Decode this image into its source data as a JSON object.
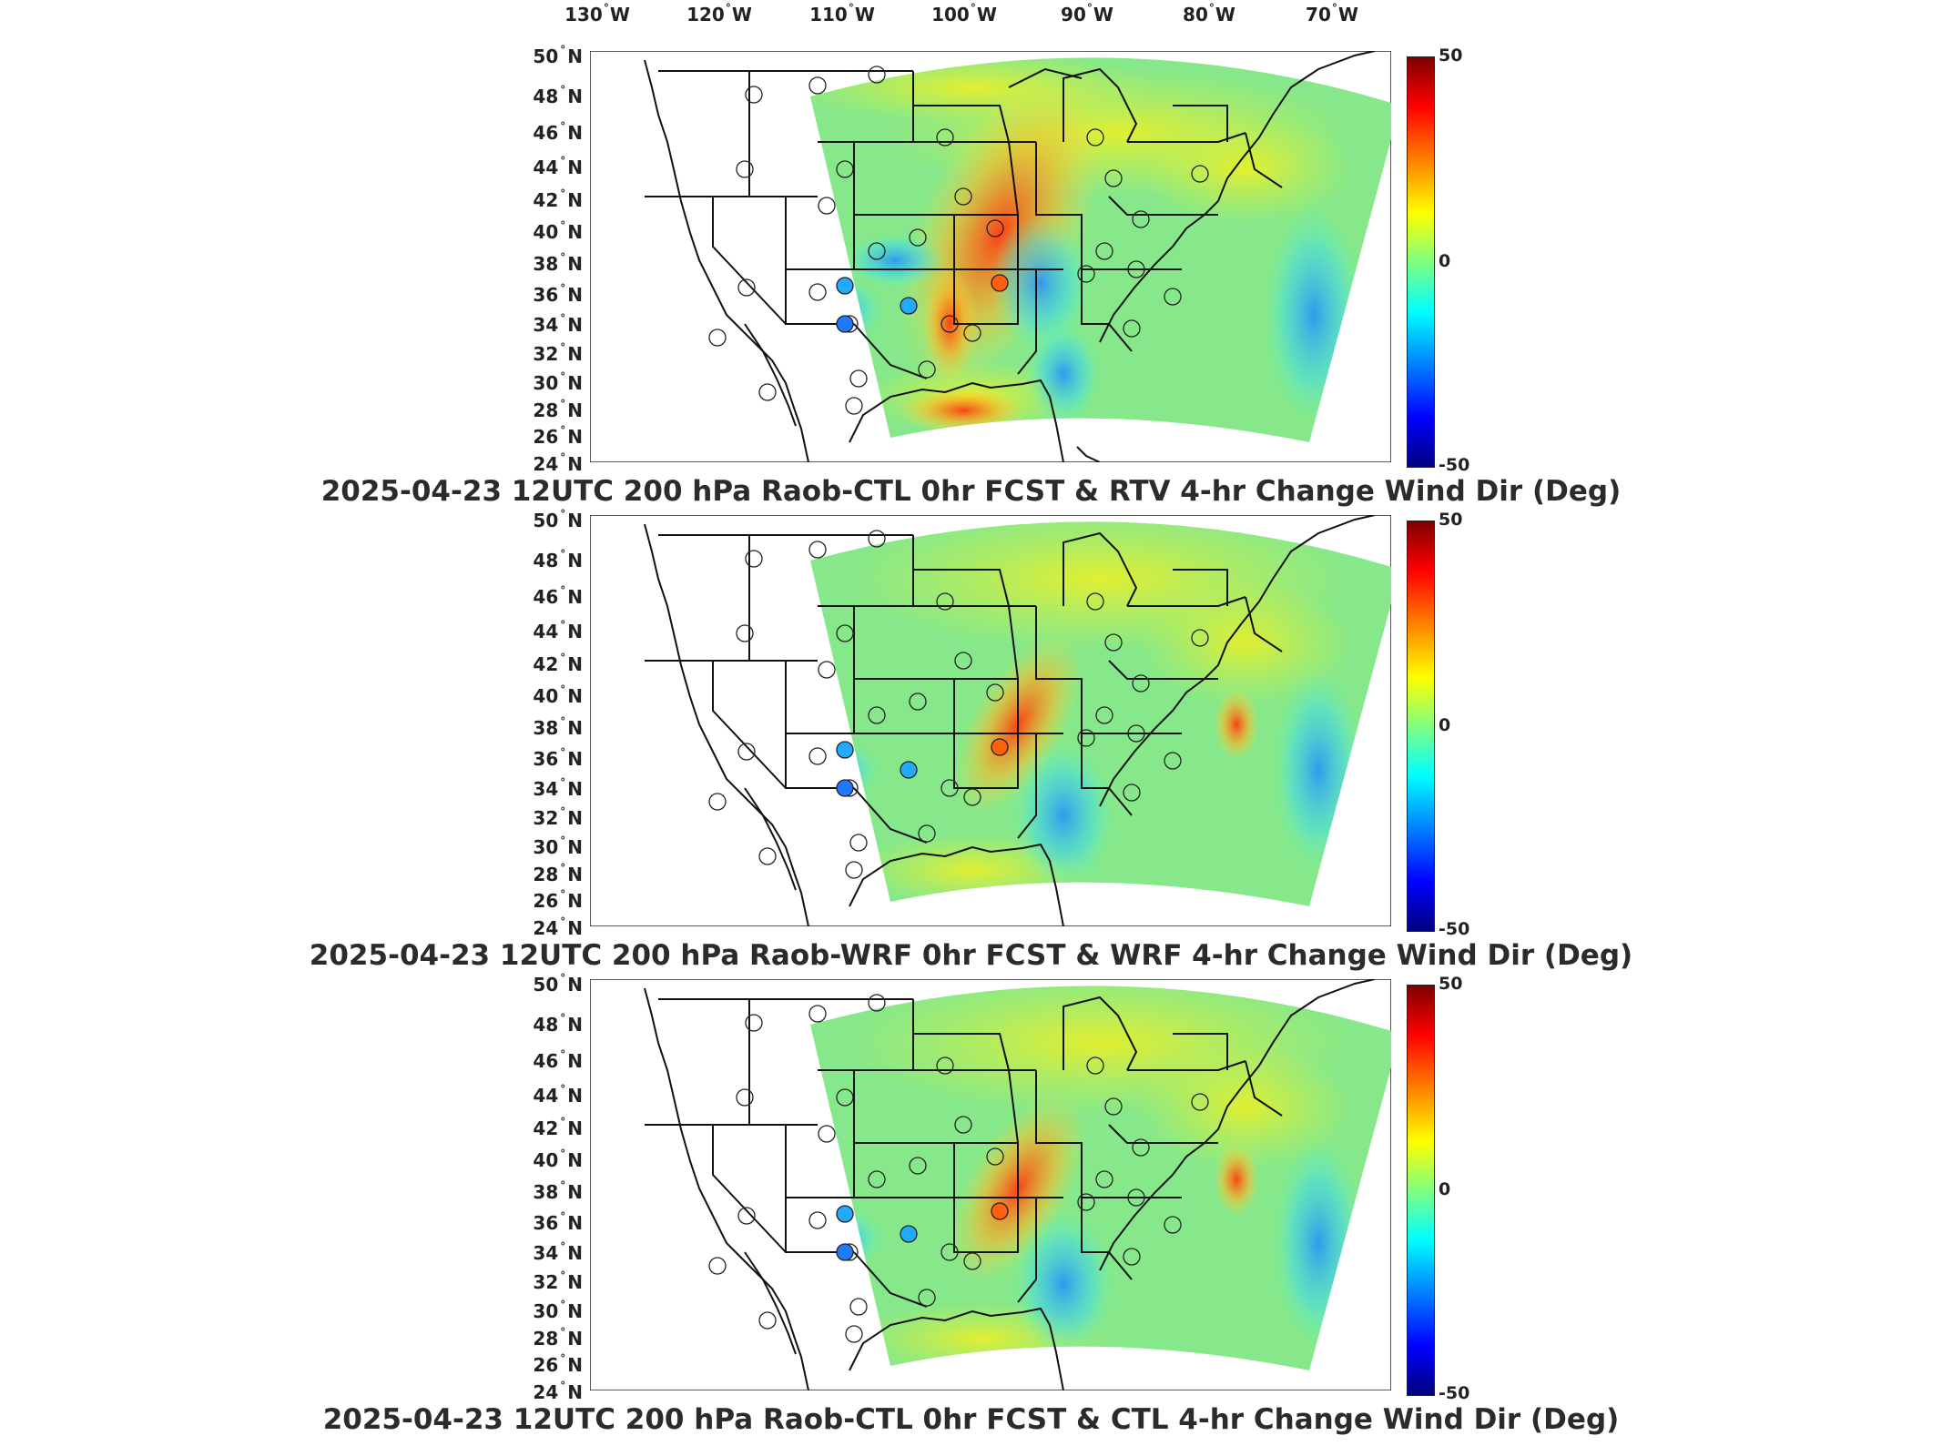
{
  "lon_labels": [
    {
      "deg": "130",
      "hem": "W"
    },
    {
      "deg": "120",
      "hem": "W"
    },
    {
      "deg": "110",
      "hem": "W"
    },
    {
      "deg": "100",
      "hem": "W"
    },
    {
      "deg": "90",
      "hem": "W"
    },
    {
      "deg": "80",
      "hem": "W"
    },
    {
      "deg": "70",
      "hem": "W"
    }
  ],
  "lat_labels": [
    {
      "deg": "50",
      "hem": "N"
    },
    {
      "deg": "48",
      "hem": "N"
    },
    {
      "deg": "46",
      "hem": "N"
    },
    {
      "deg": "44",
      "hem": "N"
    },
    {
      "deg": "42",
      "hem": "N"
    },
    {
      "deg": "40",
      "hem": "N"
    },
    {
      "deg": "38",
      "hem": "N"
    },
    {
      "deg": "36",
      "hem": "N"
    },
    {
      "deg": "34",
      "hem": "N"
    },
    {
      "deg": "32",
      "hem": "N"
    },
    {
      "deg": "30",
      "hem": "N"
    },
    {
      "deg": "28",
      "hem": "N"
    },
    {
      "deg": "26",
      "hem": "N"
    },
    {
      "deg": "24",
      "hem": "N"
    }
  ],
  "colorbar": {
    "max": "50",
    "mid": "0",
    "min": "-50"
  },
  "panels": [
    {
      "title": "2025-04-23 12UTC 200 hPa Raob-CTL 0hr FCST & RTV 4-hr Change Wind Dir (Deg)"
    },
    {
      "title": "2025-04-23 12UTC 200 hPa Raob-WRF 0hr FCST & WRF 4-hr Change Wind Dir (Deg)"
    },
    {
      "title": "2025-04-23 12UTC 200 hPa Raob-CTL 0hr FCST & CTL 4-hr Change Wind Dir (Deg)"
    }
  ],
  "colors": {
    "land_field": "#7fe08a",
    "warm": "#ff8a1a",
    "cool": "#28c8ff",
    "station_outline": "#222222"
  }
}
